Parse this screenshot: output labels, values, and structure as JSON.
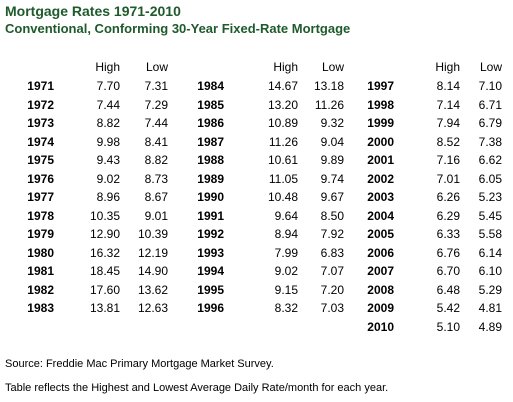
{
  "title": "Mortgage Rates 1971-2010",
  "subtitle": "Conventional, Conforming 30-Year Fixed-Rate Mortgage",
  "headers": {
    "high": "High",
    "low": "Low"
  },
  "columns": [
    {
      "rows": [
        {
          "year": "1971",
          "high": "7.70",
          "low": "7.31"
        },
        {
          "year": "1972",
          "high": "7.44",
          "low": "7.29"
        },
        {
          "year": "1973",
          "high": "8.82",
          "low": "7.44"
        },
        {
          "year": "1974",
          "high": "9.98",
          "low": "8.41"
        },
        {
          "year": "1975",
          "high": "9.43",
          "low": "8.82"
        },
        {
          "year": "1976",
          "high": "9.02",
          "low": "8.73"
        },
        {
          "year": "1977",
          "high": "8.96",
          "low": "8.67"
        },
        {
          "year": "1978",
          "high": "10.35",
          "low": "9.01"
        },
        {
          "year": "1979",
          "high": "12.90",
          "low": "10.39"
        },
        {
          "year": "1980",
          "high": "16.32",
          "low": "12.19"
        },
        {
          "year": "1981",
          "high": "18.45",
          "low": "14.90"
        },
        {
          "year": "1982",
          "high": "17.60",
          "low": "13.62"
        },
        {
          "year": "1983",
          "high": "13.81",
          "low": "12.63"
        }
      ]
    },
    {
      "rows": [
        {
          "year": "1984",
          "high": "14.67",
          "low": "13.18"
        },
        {
          "year": "1985",
          "high": "13.20",
          "low": "11.26"
        },
        {
          "year": "1986",
          "high": "10.89",
          "low": "9.32"
        },
        {
          "year": "1987",
          "high": "11.26",
          "low": "9.04"
        },
        {
          "year": "1988",
          "high": "10.61",
          "low": "9.89"
        },
        {
          "year": "1989",
          "high": "11.05",
          "low": "9.74"
        },
        {
          "year": "1990",
          "high": "10.48",
          "low": "9.67"
        },
        {
          "year": "1991",
          "high": "9.64",
          "low": "8.50"
        },
        {
          "year": "1992",
          "high": "8.94",
          "low": "7.92"
        },
        {
          "year": "1993",
          "high": "7.99",
          "low": "6.83"
        },
        {
          "year": "1994",
          "high": "9.02",
          "low": "7.07"
        },
        {
          "year": "1995",
          "high": "9.15",
          "low": "7.20"
        },
        {
          "year": "1996",
          "high": "8.32",
          "low": "7.03"
        }
      ]
    },
    {
      "rows": [
        {
          "year": "1997",
          "high": "8.14",
          "low": "7.10"
        },
        {
          "year": "1998",
          "high": "7.14",
          "low": "6.71"
        },
        {
          "year": "1999",
          "high": "7.94",
          "low": "6.79"
        },
        {
          "year": "2000",
          "high": "8.52",
          "low": "7.38"
        },
        {
          "year": "2001",
          "high": "7.16",
          "low": "6.62"
        },
        {
          "year": "2002",
          "high": "7.01",
          "low": "6.05"
        },
        {
          "year": "2003",
          "high": "6.26",
          "low": "5.23"
        },
        {
          "year": "2004",
          "high": "6.29",
          "low": "5.45"
        },
        {
          "year": "2005",
          "high": "6.33",
          "low": "5.58"
        },
        {
          "year": "2006",
          "high": "6.76",
          "low": "6.14"
        },
        {
          "year": "2007",
          "high": "6.70",
          "low": "6.10"
        },
        {
          "year": "2008",
          "high": "6.48",
          "low": "5.29"
        },
        {
          "year": "2009",
          "high": "5.42",
          "low": "4.81"
        },
        {
          "year": "2010",
          "high": "5.10",
          "low": "4.89"
        }
      ]
    }
  ],
  "footer": {
    "source": "Source: Freddie Mac Primary Mortgage Market Survey.",
    "note": "Table reflects the Highest and Lowest Average Daily Rate/month for each year."
  }
}
